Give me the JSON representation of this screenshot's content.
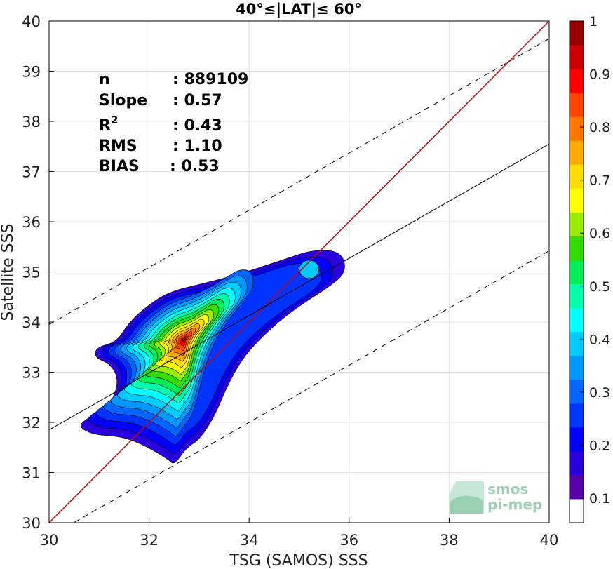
{
  "chart_data": {
    "type": "contour-density",
    "title": "40°≤|LAT|≤ 60°",
    "xlabel": "TSG (SAMOS) SSS",
    "ylabel": "Satellite SSS",
    "xlim": [
      30,
      40
    ],
    "ylim": [
      30,
      40
    ],
    "xticks": [
      30,
      32,
      34,
      36,
      38,
      40
    ],
    "yticks": [
      30,
      31,
      32,
      33,
      34,
      35,
      36,
      37,
      38,
      39,
      40
    ],
    "grid": true,
    "stats": [
      {
        "label": "n",
        "value": ": 889109"
      },
      {
        "label": "Slope",
        "value": ": 0.57"
      },
      {
        "label": "R",
        "sup": "2",
        "value": ": 0.43"
      },
      {
        "label": "RMS",
        "value": ": 1.10"
      },
      {
        "label": "BIAS",
        "value": ": 0.53"
      }
    ],
    "lines": {
      "identity": {
        "slope": 1,
        "intercept": 0,
        "color": "#cc0000"
      },
      "fit": {
        "slope": 0.57,
        "intercept": 14.75,
        "color": "#000000"
      },
      "upper_dashed": {
        "slope": 0.57,
        "intercept": 16.85,
        "color": "#000000"
      },
      "lower_dashed": {
        "slope": 0.57,
        "intercept": 12.62,
        "color": "#000000"
      }
    },
    "density_peak": {
      "x": 32.7,
      "y": 33.65
    },
    "secondary_peak": {
      "x": 35.2,
      "y": 35.05
    },
    "colorbar": {
      "ticks": [
        0.1,
        0.2,
        0.3,
        0.4,
        0.5,
        0.6,
        0.7,
        0.8,
        0.9,
        1
      ],
      "tick_labels": [
        "0.1",
        "0.2",
        "0.3",
        "0.4",
        "0.5",
        "0.6",
        "0.7",
        "0.8",
        "0.9",
        "1"
      ],
      "colors": [
        "#ffffff",
        "#5a00aa",
        "#2a00dd",
        "#0000ff",
        "#0033ff",
        "#0066ff",
        "#0099ff",
        "#00ccff",
        "#00ffff",
        "#00ffaa",
        "#00ee55",
        "#33dd00",
        "#99ee00",
        "#ffff00",
        "#ffdd00",
        "#ffaa00",
        "#ff7700",
        "#ff4400",
        "#ff0000",
        "#cc0000",
        "#990000"
      ]
    },
    "logo": {
      "line1": "smos",
      "line2": "pi-mep"
    }
  }
}
